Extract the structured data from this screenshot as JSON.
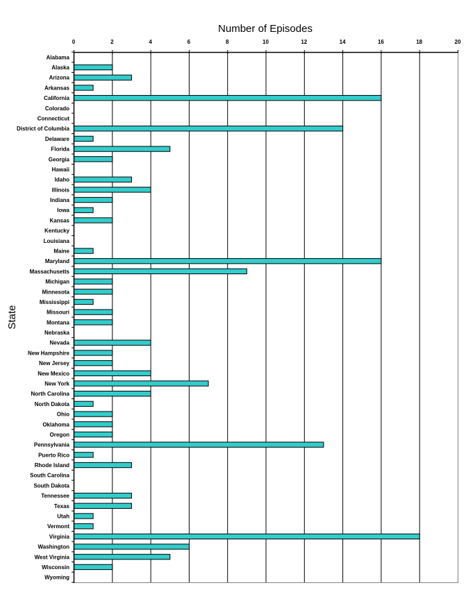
{
  "chart_data": {
    "type": "bar",
    "orientation": "horizontal",
    "title": "Number of Episodes",
    "xlabel": "Number of Episodes",
    "ylabel": "State",
    "xlim": [
      0,
      20
    ],
    "xticks": [
      0,
      2,
      4,
      6,
      8,
      10,
      12,
      14,
      16,
      18,
      20
    ],
    "x_axis_position": "top",
    "grid": true,
    "legend": null,
    "bar_color": "#33CCCC",
    "categories": [
      "Alabama",
      "Alaska",
      "Arizona",
      "Arkansas",
      "California",
      "Colorado",
      "Connecticut",
      "District of Columbia",
      "Delaware",
      "Florida",
      "Georgia",
      "Hawaii",
      "Idaho",
      "Illinois",
      "Indiana",
      "Iowa",
      "Kansas",
      "Kentucky",
      "Louisiana",
      "Maine",
      "Maryland",
      "Massachusetts",
      "Michigan",
      "Minnesota",
      "Mississippi",
      "Missouri",
      "Montana",
      "Nebraska",
      "Nevada",
      "New Hampshire",
      "New Jersey",
      "New Mexico",
      "New York",
      "North Carolina",
      "North Dakota",
      "Ohio",
      "Oklahoma",
      "Oregon",
      "Pennsylvania",
      "Puerto Rico",
      "Rhode Island",
      "South Carolina",
      "South Dakota",
      "Tennessee",
      "Texas",
      "Utah",
      "Vermont",
      "Virginia",
      "Washington",
      "West Virginia",
      "Wisconsin",
      "Wyoming"
    ],
    "values": [
      0,
      2,
      3,
      1,
      16,
      0,
      0,
      14,
      1,
      5,
      2,
      0,
      3,
      4,
      2,
      1,
      2,
      0,
      0,
      1,
      16,
      9,
      2,
      2,
      1,
      2,
      2,
      0,
      4,
      2,
      2,
      4,
      7,
      4,
      1,
      2,
      2,
      2,
      13,
      1,
      3,
      0,
      0,
      3,
      3,
      1,
      1,
      18,
      6,
      5,
      2,
      0
    ]
  }
}
